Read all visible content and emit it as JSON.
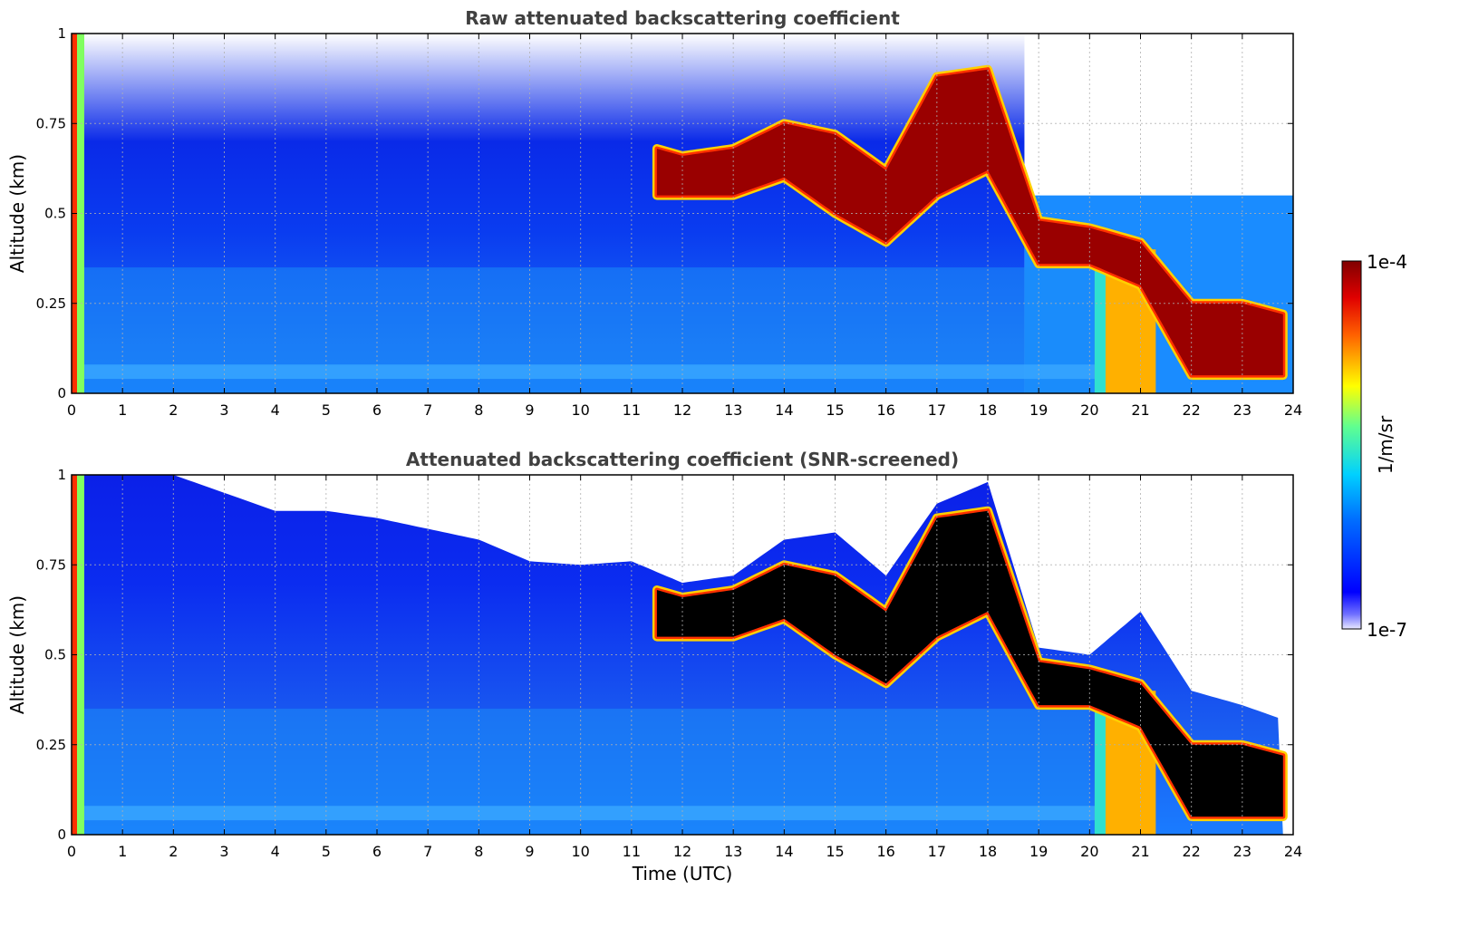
{
  "chart_data": [
    {
      "type": "heatmap",
      "title": "Raw attenuated backscattering coefficient",
      "xlabel": "",
      "ylabel": "Altitude (km)",
      "xlim": [
        0,
        24
      ],
      "ylim": [
        0,
        1
      ],
      "x_ticks": [
        "0",
        "1",
        "2",
        "3",
        "4",
        "5",
        "6",
        "7",
        "8",
        "9",
        "10",
        "11",
        "12",
        "13",
        "14",
        "15",
        "16",
        "17",
        "18",
        "19",
        "20",
        "21",
        "22",
        "23",
        "24"
      ],
      "y_ticks": [
        "0",
        "0.25",
        "0.5",
        "0.75",
        "1"
      ],
      "grid": true,
      "cloud_layer_km": {
        "time_utc": [
          11.5,
          12,
          13,
          14,
          15,
          16,
          17,
          18,
          19,
          20,
          21,
          22,
          23,
          23.8
        ],
        "base": [
          0.55,
          0.55,
          0.55,
          0.6,
          0.5,
          0.42,
          0.55,
          0.62,
          0.36,
          0.36,
          0.3,
          0.05,
          0.05,
          0.05
        ],
        "top": [
          0.68,
          0.66,
          0.68,
          0.75,
          0.72,
          0.62,
          0.88,
          0.9,
          0.48,
          0.46,
          0.42,
          0.25,
          0.25,
          0.22
        ]
      }
    },
    {
      "type": "heatmap",
      "title": "Attenuated backscattering coefficient (SNR-screened)",
      "xlabel": "Time (UTC)",
      "ylabel": "Altitude (km)",
      "xlim": [
        0,
        24
      ],
      "ylim": [
        0,
        1
      ],
      "x_ticks": [
        "0",
        "1",
        "2",
        "3",
        "4",
        "5",
        "6",
        "7",
        "8",
        "9",
        "10",
        "11",
        "12",
        "13",
        "14",
        "15",
        "16",
        "17",
        "18",
        "19",
        "20",
        "21",
        "22",
        "23",
        "24"
      ],
      "y_ticks": [
        "0",
        "0.25",
        "0.5",
        "0.75",
        "1"
      ],
      "grid": true,
      "screened_signal_top_km": {
        "time_utc": [
          0,
          1,
          2,
          3,
          4,
          5,
          6,
          7,
          8,
          9,
          10,
          11,
          12,
          13,
          14,
          15,
          16,
          17,
          18,
          19,
          20,
          21,
          22,
          23,
          23.8
        ],
        "top": [
          1.0,
          1.0,
          1.0,
          0.95,
          0.9,
          0.9,
          0.88,
          0.85,
          0.82,
          0.76,
          0.75,
          0.76,
          0.7,
          0.72,
          0.82,
          0.84,
          0.72,
          0.92,
          0.98,
          0.52,
          0.5,
          0.62,
          0.4,
          0.36,
          0.32
        ]
      }
    }
  ],
  "colorbar": {
    "label": "1/m/sr",
    "max_label": "1e-4",
    "min_label": "1e-7",
    "colormap": "jet",
    "scale": "log",
    "range": [
      1e-07,
      0.0001
    ]
  }
}
